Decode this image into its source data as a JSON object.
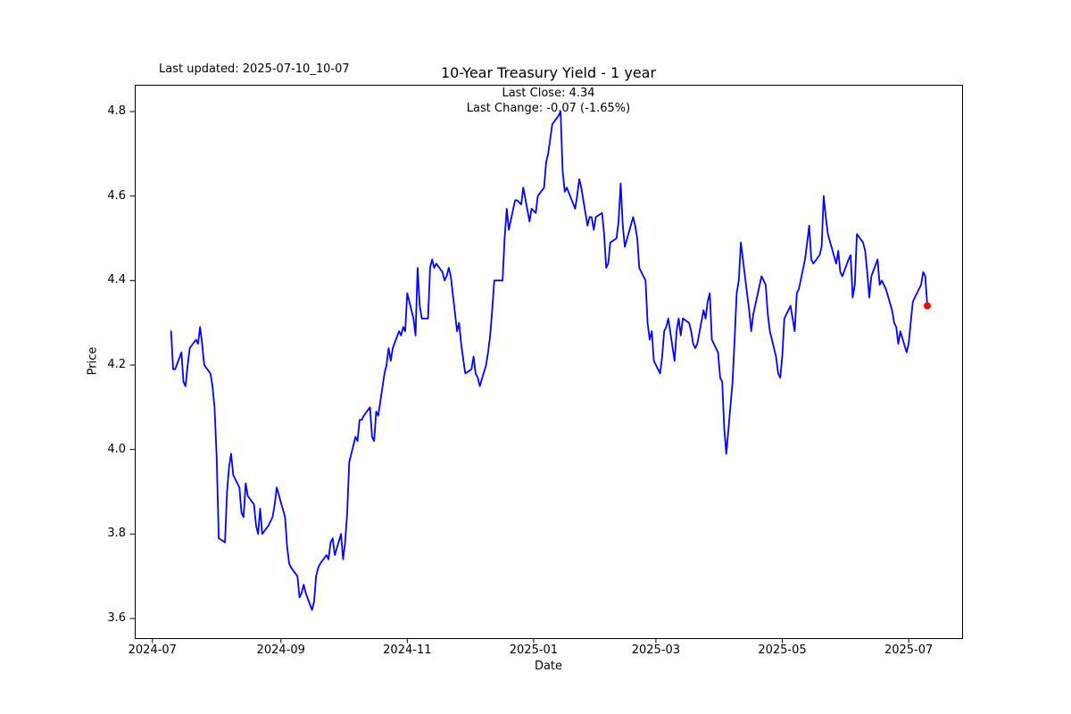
{
  "figure": {
    "title": "10-Year Treasury Yield - 1 year",
    "last_updated": "Last updated: 2025-07-10_10-07",
    "annotation_line1": "Last Close: 4.34",
    "annotation_line2": "Last Change: -0.07 (-1.65%)",
    "xlabel": "Date",
    "ylabel": "Price"
  },
  "chart_data": {
    "type": "line",
    "title": "10-Year Treasury Yield - 1 year",
    "xlabel": "Date",
    "ylabel": "Price",
    "legend": "none",
    "grid": false,
    "line_color": "#0000ff",
    "line_width": 1.8,
    "marker_color": "#ff0000",
    "last_close": 4.34,
    "last_change": "-0.07 (-1.65%)",
    "x_ticks": [
      "2024-07",
      "2024-09",
      "2024-11",
      "2025-01",
      "2025-03",
      "2025-05",
      "2025-07"
    ],
    "y_ticks": [
      3.6,
      3.8,
      4.0,
      4.2,
      4.4,
      4.6,
      4.8
    ],
    "ylim": [
      3.55,
      4.86
    ],
    "xlim": [
      "2024-06-22",
      "2025-07-26"
    ],
    "series": [
      {
        "name": "10-Year Treasury Yield",
        "points": [
          [
            "2024-07-10",
            4.28
          ],
          [
            "2024-07-11",
            4.19
          ],
          [
            "2024-07-12",
            4.19
          ],
          [
            "2024-07-15",
            4.23
          ],
          [
            "2024-07-16",
            4.16
          ],
          [
            "2024-07-17",
            4.15
          ],
          [
            "2024-07-18",
            4.2
          ],
          [
            "2024-07-19",
            4.24
          ],
          [
            "2024-07-22",
            4.26
          ],
          [
            "2024-07-23",
            4.25
          ],
          [
            "2024-07-24",
            4.29
          ],
          [
            "2024-07-25",
            4.25
          ],
          [
            "2024-07-26",
            4.2
          ],
          [
            "2024-07-29",
            4.18
          ],
          [
            "2024-07-30",
            4.15
          ],
          [
            "2024-07-31",
            4.1
          ],
          [
            "2024-08-01",
            3.98
          ],
          [
            "2024-08-02",
            3.79
          ],
          [
            "2024-08-05",
            3.78
          ],
          [
            "2024-08-06",
            3.9
          ],
          [
            "2024-08-07",
            3.96
          ],
          [
            "2024-08-08",
            3.99
          ],
          [
            "2024-08-09",
            3.94
          ],
          [
            "2024-08-12",
            3.91
          ],
          [
            "2024-08-13",
            3.85
          ],
          [
            "2024-08-14",
            3.84
          ],
          [
            "2024-08-15",
            3.92
          ],
          [
            "2024-08-16",
            3.89
          ],
          [
            "2024-08-19",
            3.87
          ],
          [
            "2024-08-20",
            3.82
          ],
          [
            "2024-08-21",
            3.8
          ],
          [
            "2024-08-22",
            3.86
          ],
          [
            "2024-08-23",
            3.8
          ],
          [
            "2024-08-26",
            3.82
          ],
          [
            "2024-08-27",
            3.83
          ],
          [
            "2024-08-28",
            3.84
          ],
          [
            "2024-08-29",
            3.87
          ],
          [
            "2024-08-30",
            3.91
          ],
          [
            "2024-09-03",
            3.84
          ],
          [
            "2024-09-04",
            3.77
          ],
          [
            "2024-09-05",
            3.73
          ],
          [
            "2024-09-06",
            3.72
          ],
          [
            "2024-09-09",
            3.7
          ],
          [
            "2024-09-10",
            3.65
          ],
          [
            "2024-09-11",
            3.66
          ],
          [
            "2024-09-12",
            3.68
          ],
          [
            "2024-09-13",
            3.66
          ],
          [
            "2024-09-16",
            3.62
          ],
          [
            "2024-09-17",
            3.64
          ],
          [
            "2024-09-18",
            3.7
          ],
          [
            "2024-09-19",
            3.72
          ],
          [
            "2024-09-20",
            3.73
          ],
          [
            "2024-09-23",
            3.75
          ],
          [
            "2024-09-24",
            3.74
          ],
          [
            "2024-09-25",
            3.78
          ],
          [
            "2024-09-26",
            3.79
          ],
          [
            "2024-09-27",
            3.75
          ],
          [
            "2024-09-30",
            3.8
          ],
          [
            "2024-10-01",
            3.74
          ],
          [
            "2024-10-02",
            3.78
          ],
          [
            "2024-10-03",
            3.85
          ],
          [
            "2024-10-04",
            3.97
          ],
          [
            "2024-10-07",
            4.03
          ],
          [
            "2024-10-08",
            4.02
          ],
          [
            "2024-10-09",
            4.07
          ],
          [
            "2024-10-10",
            4.07
          ],
          [
            "2024-10-11",
            4.08
          ],
          [
            "2024-10-14",
            4.1
          ],
          [
            "2024-10-15",
            4.03
          ],
          [
            "2024-10-16",
            4.02
          ],
          [
            "2024-10-17",
            4.09
          ],
          [
            "2024-10-18",
            4.08
          ],
          [
            "2024-10-21",
            4.18
          ],
          [
            "2024-10-22",
            4.2
          ],
          [
            "2024-10-23",
            4.24
          ],
          [
            "2024-10-24",
            4.21
          ],
          [
            "2024-10-25",
            4.24
          ],
          [
            "2024-10-28",
            4.28
          ],
          [
            "2024-10-29",
            4.27
          ],
          [
            "2024-10-30",
            4.29
          ],
          [
            "2024-10-31",
            4.28
          ],
          [
            "2024-11-01",
            4.37
          ],
          [
            "2024-11-04",
            4.31
          ],
          [
            "2024-11-05",
            4.27
          ],
          [
            "2024-11-06",
            4.43
          ],
          [
            "2024-11-07",
            4.34
          ],
          [
            "2024-11-08",
            4.31
          ],
          [
            "2024-11-11",
            4.31
          ],
          [
            "2024-11-12",
            4.43
          ],
          [
            "2024-11-13",
            4.45
          ],
          [
            "2024-11-14",
            4.43
          ],
          [
            "2024-11-15",
            4.44
          ],
          [
            "2024-11-18",
            4.42
          ],
          [
            "2024-11-19",
            4.4
          ],
          [
            "2024-11-20",
            4.41
          ],
          [
            "2024-11-21",
            4.43
          ],
          [
            "2024-11-22",
            4.41
          ],
          [
            "2024-11-25",
            4.28
          ],
          [
            "2024-11-26",
            4.3
          ],
          [
            "2024-11-27",
            4.25
          ],
          [
            "2024-11-29",
            4.18
          ],
          [
            "2024-12-02",
            4.19
          ],
          [
            "2024-12-03",
            4.22
          ],
          [
            "2024-12-04",
            4.18
          ],
          [
            "2024-12-05",
            4.17
          ],
          [
            "2024-12-06",
            4.15
          ],
          [
            "2024-12-09",
            4.2
          ],
          [
            "2024-12-10",
            4.23
          ],
          [
            "2024-12-11",
            4.27
          ],
          [
            "2024-12-12",
            4.33
          ],
          [
            "2024-12-13",
            4.4
          ],
          [
            "2024-12-16",
            4.4
          ],
          [
            "2024-12-17",
            4.4
          ],
          [
            "2024-12-18",
            4.5
          ],
          [
            "2024-12-19",
            4.57
          ],
          [
            "2024-12-20",
            4.52
          ],
          [
            "2024-12-23",
            4.59
          ],
          [
            "2024-12-24",
            4.59
          ],
          [
            "2024-12-26",
            4.58
          ],
          [
            "2024-12-27",
            4.62
          ],
          [
            "2024-12-30",
            4.54
          ],
          [
            "2024-12-31",
            4.57
          ],
          [
            "2025-01-02",
            4.56
          ],
          [
            "2025-01-03",
            4.6
          ],
          [
            "2025-01-06",
            4.62
          ],
          [
            "2025-01-07",
            4.68
          ],
          [
            "2025-01-08",
            4.7
          ],
          [
            "2025-01-10",
            4.77
          ],
          [
            "2025-01-13",
            4.79
          ],
          [
            "2025-01-14",
            4.8
          ],
          [
            "2025-01-15",
            4.66
          ],
          [
            "2025-01-16",
            4.61
          ],
          [
            "2025-01-17",
            4.62
          ],
          [
            "2025-01-21",
            4.57
          ],
          [
            "2025-01-22",
            4.6
          ],
          [
            "2025-01-23",
            4.64
          ],
          [
            "2025-01-24",
            4.62
          ],
          [
            "2025-01-27",
            4.53
          ],
          [
            "2025-01-28",
            4.55
          ],
          [
            "2025-01-29",
            4.55
          ],
          [
            "2025-01-30",
            4.52
          ],
          [
            "2025-01-31",
            4.55
          ],
          [
            "2025-02-03",
            4.56
          ],
          [
            "2025-02-04",
            4.51
          ],
          [
            "2025-02-05",
            4.43
          ],
          [
            "2025-02-06",
            4.44
          ],
          [
            "2025-02-07",
            4.49
          ],
          [
            "2025-02-10",
            4.5
          ],
          [
            "2025-02-11",
            4.54
          ],
          [
            "2025-02-12",
            4.63
          ],
          [
            "2025-02-13",
            4.53
          ],
          [
            "2025-02-14",
            4.48
          ],
          [
            "2025-02-18",
            4.55
          ],
          [
            "2025-02-19",
            4.53
          ],
          [
            "2025-02-20",
            4.5
          ],
          [
            "2025-02-21",
            4.43
          ],
          [
            "2025-02-24",
            4.4
          ],
          [
            "2025-02-25",
            4.3
          ],
          [
            "2025-02-26",
            4.26
          ],
          [
            "2025-02-27",
            4.28
          ],
          [
            "2025-02-28",
            4.21
          ],
          [
            "2025-03-03",
            4.18
          ],
          [
            "2025-03-04",
            4.22
          ],
          [
            "2025-03-05",
            4.28
          ],
          [
            "2025-03-06",
            4.29
          ],
          [
            "2025-03-07",
            4.31
          ],
          [
            "2025-03-10",
            4.21
          ],
          [
            "2025-03-11",
            4.28
          ],
          [
            "2025-03-12",
            4.31
          ],
          [
            "2025-03-13",
            4.27
          ],
          [
            "2025-03-14",
            4.31
          ],
          [
            "2025-03-17",
            4.3
          ],
          [
            "2025-03-18",
            4.28
          ],
          [
            "2025-03-19",
            4.25
          ],
          [
            "2025-03-20",
            4.24
          ],
          [
            "2025-03-21",
            4.25
          ],
          [
            "2025-03-24",
            4.33
          ],
          [
            "2025-03-25",
            4.31
          ],
          [
            "2025-03-26",
            4.35
          ],
          [
            "2025-03-27",
            4.37
          ],
          [
            "2025-03-28",
            4.26
          ],
          [
            "2025-03-31",
            4.23
          ],
          [
            "2025-04-01",
            4.17
          ],
          [
            "2025-04-02",
            4.16
          ],
          [
            "2025-04-03",
            4.05
          ],
          [
            "2025-04-04",
            3.99
          ],
          [
            "2025-04-07",
            4.16
          ],
          [
            "2025-04-08",
            4.26
          ],
          [
            "2025-04-09",
            4.37
          ],
          [
            "2025-04-10",
            4.4
          ],
          [
            "2025-04-11",
            4.49
          ],
          [
            "2025-04-14",
            4.37
          ],
          [
            "2025-04-15",
            4.33
          ],
          [
            "2025-04-16",
            4.28
          ],
          [
            "2025-04-17",
            4.32
          ],
          [
            "2025-04-21",
            4.41
          ],
          [
            "2025-04-22",
            4.4
          ],
          [
            "2025-04-23",
            4.39
          ],
          [
            "2025-04-24",
            4.32
          ],
          [
            "2025-04-25",
            4.28
          ],
          [
            "2025-04-28",
            4.22
          ],
          [
            "2025-04-29",
            4.18
          ],
          [
            "2025-04-30",
            4.17
          ],
          [
            "2025-05-01",
            4.22
          ],
          [
            "2025-05-02",
            4.31
          ],
          [
            "2025-05-05",
            4.34
          ],
          [
            "2025-05-06",
            4.31
          ],
          [
            "2025-05-07",
            4.28
          ],
          [
            "2025-05-08",
            4.37
          ],
          [
            "2025-05-09",
            4.38
          ],
          [
            "2025-05-12",
            4.45
          ],
          [
            "2025-05-13",
            4.49
          ],
          [
            "2025-05-14",
            4.53
          ],
          [
            "2025-05-15",
            4.45
          ],
          [
            "2025-05-16",
            4.44
          ],
          [
            "2025-05-19",
            4.46
          ],
          [
            "2025-05-20",
            4.48
          ],
          [
            "2025-05-21",
            4.6
          ],
          [
            "2025-05-22",
            4.55
          ],
          [
            "2025-05-23",
            4.51
          ],
          [
            "2025-05-27",
            4.44
          ],
          [
            "2025-05-28",
            4.47
          ],
          [
            "2025-05-29",
            4.42
          ],
          [
            "2025-05-30",
            4.41
          ],
          [
            "2025-06-02",
            4.45
          ],
          [
            "2025-06-03",
            4.46
          ],
          [
            "2025-06-04",
            4.36
          ],
          [
            "2025-06-05",
            4.39
          ],
          [
            "2025-06-06",
            4.51
          ],
          [
            "2025-06-09",
            4.49
          ],
          [
            "2025-06-10",
            4.47
          ],
          [
            "2025-06-11",
            4.42
          ],
          [
            "2025-06-12",
            4.36
          ],
          [
            "2025-06-13",
            4.41
          ],
          [
            "2025-06-16",
            4.45
          ],
          [
            "2025-06-17",
            4.39
          ],
          [
            "2025-06-18",
            4.4
          ],
          [
            "2025-06-20",
            4.38
          ],
          [
            "2025-06-23",
            4.33
          ],
          [
            "2025-06-24",
            4.3
          ],
          [
            "2025-06-25",
            4.29
          ],
          [
            "2025-06-26",
            4.25
          ],
          [
            "2025-06-27",
            4.28
          ],
          [
            "2025-06-30",
            4.23
          ],
          [
            "2025-07-01",
            4.25
          ],
          [
            "2025-07-02",
            4.3
          ],
          [
            "2025-07-03",
            4.35
          ],
          [
            "2025-07-07",
            4.39
          ],
          [
            "2025-07-08",
            4.42
          ],
          [
            "2025-07-09",
            4.41
          ],
          [
            "2025-07-10",
            4.34
          ]
        ]
      }
    ]
  }
}
